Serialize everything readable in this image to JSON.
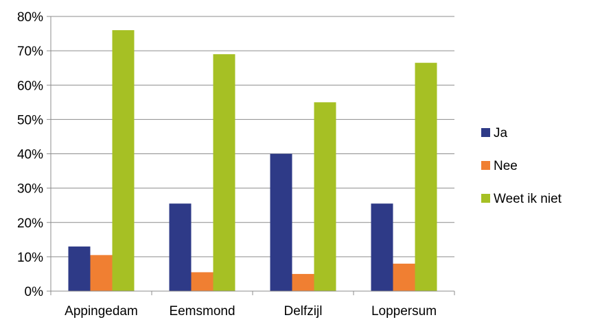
{
  "chart_data": {
    "type": "bar",
    "categories": [
      "Appingedam",
      "Eemsmond",
      "Delfzijl",
      "Loppersum"
    ],
    "series": [
      {
        "name": "Ja",
        "color": "#2E3A87",
        "values": [
          13,
          25.5,
          40,
          25.5
        ]
      },
      {
        "name": "Nee",
        "color": "#F07F32",
        "values": [
          10.5,
          5.5,
          5,
          8
        ]
      },
      {
        "name": "Weet ik niet",
        "color": "#A6C024",
        "values": [
          76,
          69,
          55,
          66.5
        ]
      }
    ],
    "title": "",
    "xlabel": "",
    "ylabel": "",
    "ylim": [
      0,
      80
    ],
    "yticks": [
      "0%",
      "10%",
      "20%",
      "30%",
      "40%",
      "50%",
      "60%",
      "70%",
      "80%"
    ],
    "grid": true,
    "legend": "right"
  }
}
